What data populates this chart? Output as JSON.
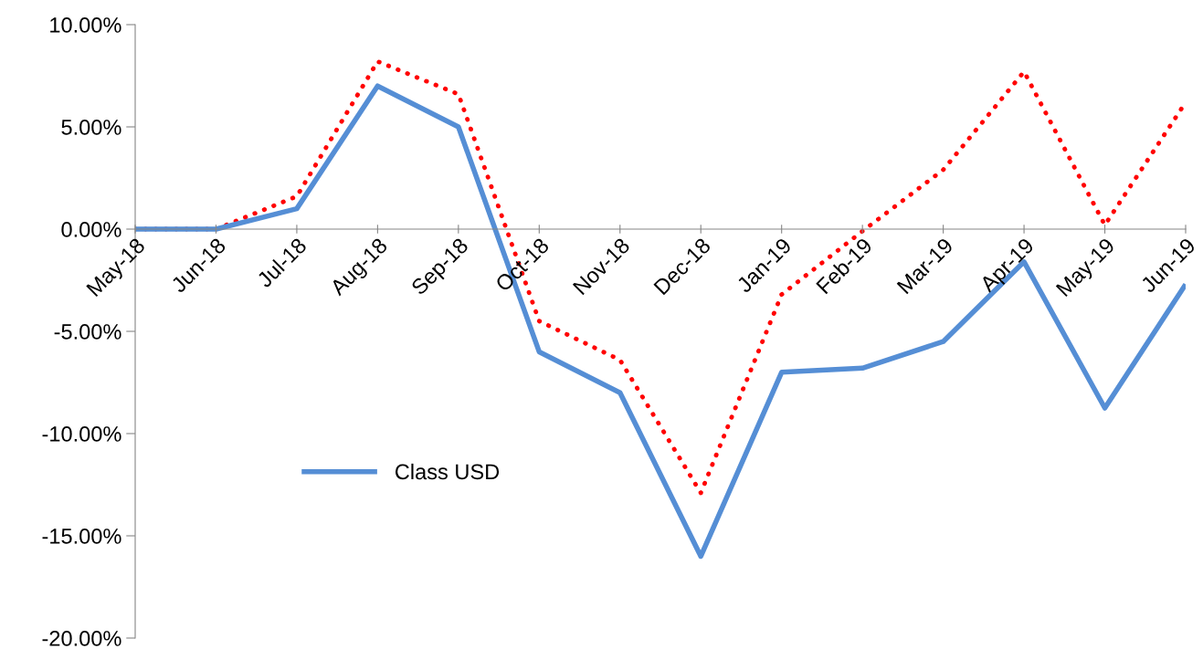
{
  "chart_data": {
    "type": "line",
    "categories": [
      "May-18",
      "Jun-18",
      "Jul-18",
      "Aug-18",
      "Sep-18",
      "Oct-18",
      "Nov-18",
      "Dec-18",
      "Jan-19",
      "Feb-19",
      "Mar-19",
      "Apr-19",
      "May-19",
      "Jun-19"
    ],
    "series": [
      {
        "name": "Class USD",
        "color": "#558ed5",
        "line_style": "solid",
        "values": [
          0,
          0,
          1.0,
          7.0,
          5.0,
          -6.0,
          -8.0,
          -16.0,
          -7.0,
          -6.8,
          -5.5,
          -1.6,
          -8.75,
          -2.7
        ]
      },
      {
        "color": "#ff0000",
        "line_style": "dotted",
        "values": [
          0,
          0,
          1.6,
          8.2,
          6.6,
          -4.5,
          -6.4,
          -12.9,
          -3.2,
          -0.1,
          2.9,
          7.7,
          0.2,
          6.2
        ]
      }
    ],
    "ylim": [
      -20,
      10
    ],
    "yticks": [
      {
        "value": -20,
        "label": "-20.00%"
      },
      {
        "value": -15,
        "label": "-15.00%"
      },
      {
        "value": -10,
        "label": "-10.00%"
      },
      {
        "value": -5,
        "label": "-5.00%"
      },
      {
        "value": 0,
        "label": "0.00%"
      },
      {
        "value": 5,
        "label": "5.00%"
      },
      {
        "value": 10,
        "label": "10.00%"
      }
    ],
    "grid": false,
    "legend": "bottom left",
    "marker": "none"
  }
}
